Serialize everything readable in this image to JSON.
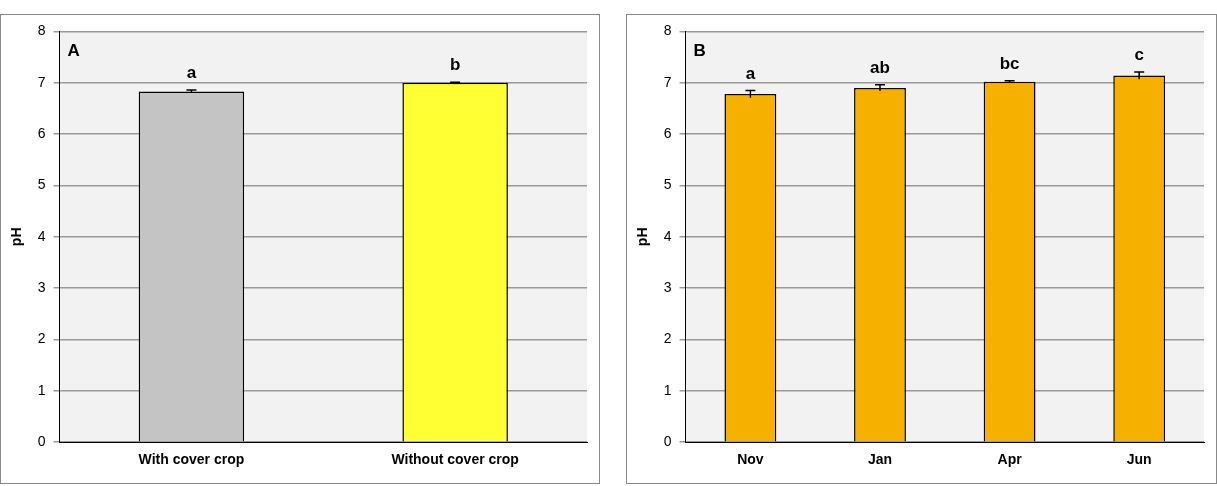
{
  "chart_data": [
    {
      "type": "bar",
      "title": "A",
      "ylabel": "pH",
      "categories": [
        "With cover crop",
        "Without cover crop"
      ],
      "values": [
        6.83,
        7.0
      ],
      "errors": [
        0.03,
        0.01
      ],
      "colors": [
        "#c4c4c4",
        "#ffff33"
      ],
      "ylim": [
        0,
        8
      ],
      "yticks": [
        0,
        1,
        2,
        3,
        4,
        5,
        6,
        7,
        8
      ],
      "grid": "y",
      "legend": false,
      "annotations": [
        "a",
        "b"
      ]
    },
    {
      "type": "bar",
      "title": "B",
      "ylabel": "pH",
      "categories": [
        "Nov",
        "Jan",
        "Apr",
        "Jun"
      ],
      "values": [
        6.78,
        6.9,
        7.02,
        7.14
      ],
      "errors": [
        0.07,
        0.06,
        0.02,
        0.07
      ],
      "colors": [
        "#f5b000",
        "#f5b000",
        "#f5b000",
        "#f5b000"
      ],
      "ylim": [
        0,
        8
      ],
      "yticks": [
        0,
        1,
        2,
        3,
        4,
        5,
        6,
        7,
        8
      ],
      "grid": "y",
      "legend": false,
      "annotations": [
        "a",
        "ab",
        "bc",
        "c"
      ]
    }
  ]
}
